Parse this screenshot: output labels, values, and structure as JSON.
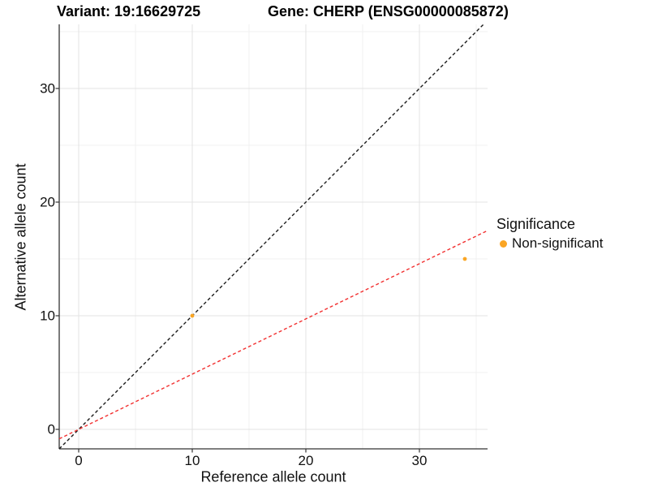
{
  "header": {
    "title_variant": "Variant: 19:16629725",
    "title_gene": "Gene: CHERP (ENSG00000085872)"
  },
  "chart_data": {
    "type": "scatter",
    "title": "Variant: 19:16629725   Gene: CHERP (ENSG00000085872)",
    "xlabel": "Reference allele count",
    "ylabel": "Alternative allele count",
    "xlim": [
      -1.7143,
      36.0
    ],
    "ylim": [
      -1.7143,
      35.6429
    ],
    "x_major_ticks": [
      0,
      10,
      20,
      30
    ],
    "y_major_ticks": [
      0,
      10,
      20,
      30
    ],
    "x_minor_ticks": [
      5,
      15,
      25,
      35
    ],
    "y_minor_ticks": [
      5,
      15,
      25,
      35
    ],
    "grid": true,
    "points": [
      {
        "x": 10,
        "y": 10,
        "significance": "Non-significant"
      },
      {
        "x": 34,
        "y": 15,
        "significance": "Non-significant"
      }
    ],
    "lines": [
      {
        "name": "identity-line",
        "slope": 1.0,
        "intercept": 0,
        "color": "#1a1a1a",
        "style": "dashed"
      },
      {
        "name": "fit-line",
        "slope": 0.486,
        "intercept": 0,
        "color": "#f23030",
        "style": "dashed"
      }
    ],
    "legend": {
      "position": "right",
      "title": "Significance",
      "entries": [
        {
          "label": "Non-significant",
          "color": "#faa523"
        }
      ]
    }
  },
  "colors": {
    "background": "#ffffff",
    "axis_line": "#333333",
    "grid_major": "#e3e3e3",
    "grid_minor": "#f0f0f0",
    "point": "#faa523",
    "identity_line": "#1a1a1a",
    "fit_line": "#f23030",
    "text": "#111111"
  }
}
